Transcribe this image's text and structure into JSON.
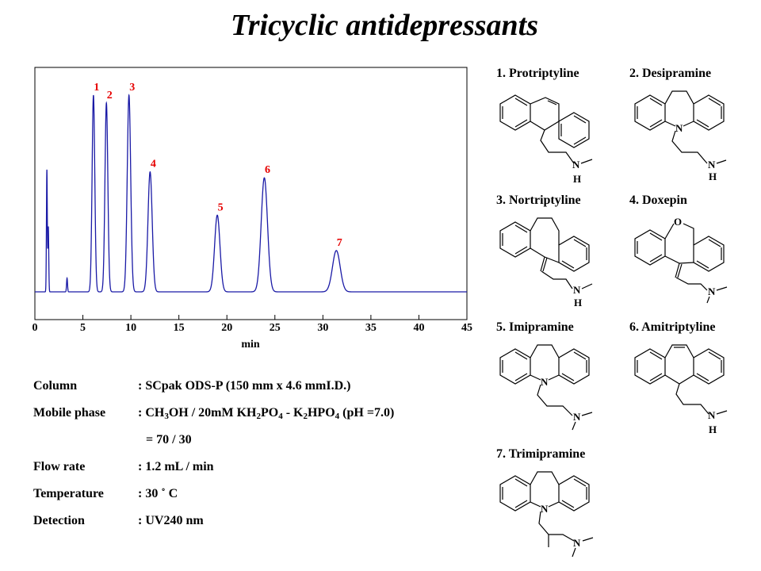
{
  "title": "Tricyclic antidepressants",
  "chart_data": {
    "type": "line",
    "title": "",
    "xlabel": "min",
    "ylabel": "",
    "xlim": [
      0,
      45
    ],
    "ylim": [
      0,
      1
    ],
    "xticks": [
      0,
      5,
      10,
      15,
      20,
      25,
      30,
      35,
      40,
      45
    ],
    "grid": false,
    "line_color": "#1a1aa6",
    "label_color": "#e60000",
    "baseline": 0.0,
    "disturbances": [
      {
        "t": 1.25,
        "height": 0.62,
        "width": 0.045
      },
      {
        "t": 1.4,
        "height": 0.33,
        "width": 0.045
      },
      {
        "t": 3.35,
        "height": 0.07,
        "width": 0.05
      }
    ],
    "peaks": [
      {
        "label": "1",
        "t": 6.1,
        "height": 1.0,
        "width": 0.14
      },
      {
        "label": "2",
        "t": 7.45,
        "height": 0.96,
        "width": 0.15
      },
      {
        "label": "3",
        "t": 9.8,
        "height": 1.0,
        "width": 0.18
      },
      {
        "label": "4",
        "t": 12.0,
        "height": 0.61,
        "width": 0.22
      },
      {
        "label": "5",
        "t": 19.0,
        "height": 0.39,
        "width": 0.28
      },
      {
        "label": "6",
        "t": 23.9,
        "height": 0.58,
        "width": 0.33
      },
      {
        "label": "7",
        "t": 31.4,
        "height": 0.21,
        "width": 0.4
      }
    ]
  },
  "conditions": [
    {
      "label": "Column",
      "value": ": SCpak ODS-P  (150 mm x 4.6 mmI.D.)"
    },
    {
      "label": "Mobile phase",
      "value": ": CH3OH / 20mM KH2PO4 - K2HPO4 (pH =7.0)"
    },
    {
      "label": "",
      "value": "= 70 / 30"
    },
    {
      "label": "Flow rate",
      "value": ": 1.2 mL / min"
    },
    {
      "label": "Temperature",
      "value": ": 30 ˚ C"
    },
    {
      "label": "Detection",
      "value": ": UV240 nm"
    }
  ],
  "compounds": [
    {
      "name": "1. Protriptyline"
    },
    {
      "name": "2. Desipramine"
    },
    {
      "name": "3. Nortriptyline"
    },
    {
      "name": "4. Doxepin"
    },
    {
      "name": "5. Imipramine"
    },
    {
      "name": "6. Amitriptyline"
    },
    {
      "name": "7. Trimipramine"
    }
  ],
  "atoms": {
    "N": "N",
    "H": "H",
    "O": "O"
  }
}
